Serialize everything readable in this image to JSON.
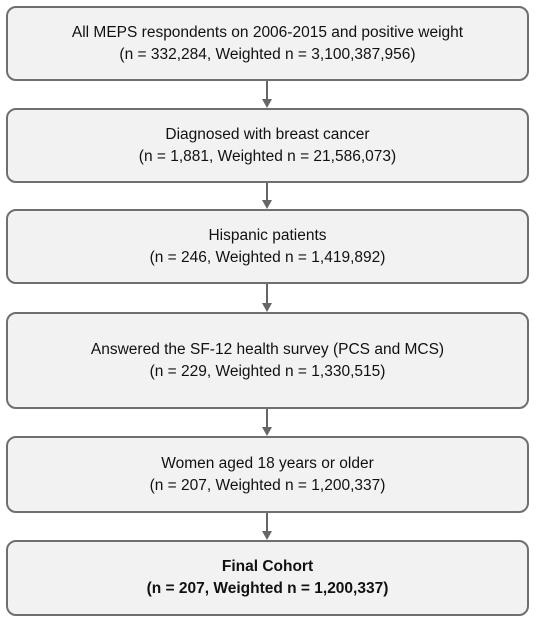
{
  "flowchart": {
    "steps": [
      {
        "label": "All MEPS respondents on 2006-2015 and positive weight",
        "counts": "(n = 332,284, Weighted n = 3,100,387,956)"
      },
      {
        "label": "Diagnosed with breast cancer",
        "counts": "(n = 1,881, Weighted n = 21,586,073)"
      },
      {
        "label": "Hispanic patients",
        "counts": "(n = 246, Weighted n = 1,419,892)"
      },
      {
        "label": "Answered the SF-12 health survey (PCS and MCS)",
        "counts": "(n = 229, Weighted n = 1,330,515)"
      },
      {
        "label": "Women aged 18 years or older",
        "counts": "(n = 207, Weighted n = 1,200,337)"
      },
      {
        "label": "Final Cohort",
        "counts": "(n = 207, Weighted n = 1,200,337)"
      }
    ],
    "colors": {
      "box_fill": "#f2f2f2",
      "box_border": "#6f6f6f",
      "arrow": "#666666"
    },
    "icons": {
      "connector": "arrow-down-icon"
    }
  }
}
